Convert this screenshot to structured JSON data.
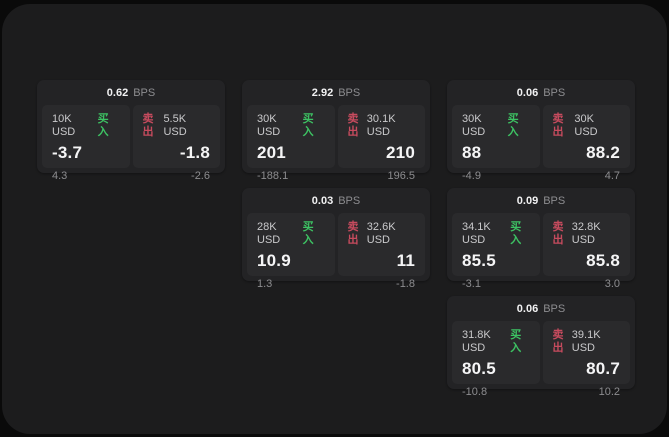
{
  "colors": {
    "buy_accent": "#3dc263",
    "sell_accent": "#c74b5e",
    "muted_text": "#8d8d90"
  },
  "cards": [
    {
      "grid": {
        "col": 1,
        "row": 1
      },
      "bps_value": "0.62",
      "bps_unit": "BPS",
      "buy": {
        "size": "10K USD",
        "side_label": "买入",
        "price": "-3.7",
        "delta": "4.3"
      },
      "sell": {
        "size": "5.5K USD",
        "side_label": "卖出",
        "price": "-1.8",
        "delta": "-2.6"
      }
    },
    {
      "grid": {
        "col": 2,
        "row": 1
      },
      "bps_value": "2.92",
      "bps_unit": "BPS",
      "buy": {
        "size": "30K USD",
        "side_label": "买入",
        "price": "201",
        "delta": "-188.1"
      },
      "sell": {
        "size": "30.1K USD",
        "side_label": "卖出",
        "price": "210",
        "delta": "196.5"
      }
    },
    {
      "grid": {
        "col": 3,
        "row": 1
      },
      "bps_value": "0.06",
      "bps_unit": "BPS",
      "buy": {
        "size": "30K USD",
        "side_label": "买入",
        "price": "88",
        "delta": "-4.9"
      },
      "sell": {
        "size": "30K USD",
        "side_label": "卖出",
        "price": "88.2",
        "delta": "4.7"
      }
    },
    {
      "grid": {
        "col": 2,
        "row": 2
      },
      "bps_value": "0.03",
      "bps_unit": "BPS",
      "buy": {
        "size": "28K USD",
        "side_label": "买入",
        "price": "10.9",
        "delta": "1.3"
      },
      "sell": {
        "size": "32.6K USD",
        "side_label": "卖出",
        "price": "11",
        "delta": "-1.8"
      }
    },
    {
      "grid": {
        "col": 3,
        "row": 2
      },
      "bps_value": "0.09",
      "bps_unit": "BPS",
      "buy": {
        "size": "34.1K USD",
        "side_label": "买入",
        "price": "85.5",
        "delta": "-3.1"
      },
      "sell": {
        "size": "32.8K USD",
        "side_label": "卖出",
        "price": "85.8",
        "delta": "3.0"
      }
    },
    {
      "grid": {
        "col": 3,
        "row": 3
      },
      "bps_value": "0.06",
      "bps_unit": "BPS",
      "buy": {
        "size": "31.8K USD",
        "side_label": "买入",
        "price": "80.5",
        "delta": "-10.8"
      },
      "sell": {
        "size": "39.1K USD",
        "side_label": "卖出",
        "price": "80.7",
        "delta": "10.2"
      }
    }
  ]
}
